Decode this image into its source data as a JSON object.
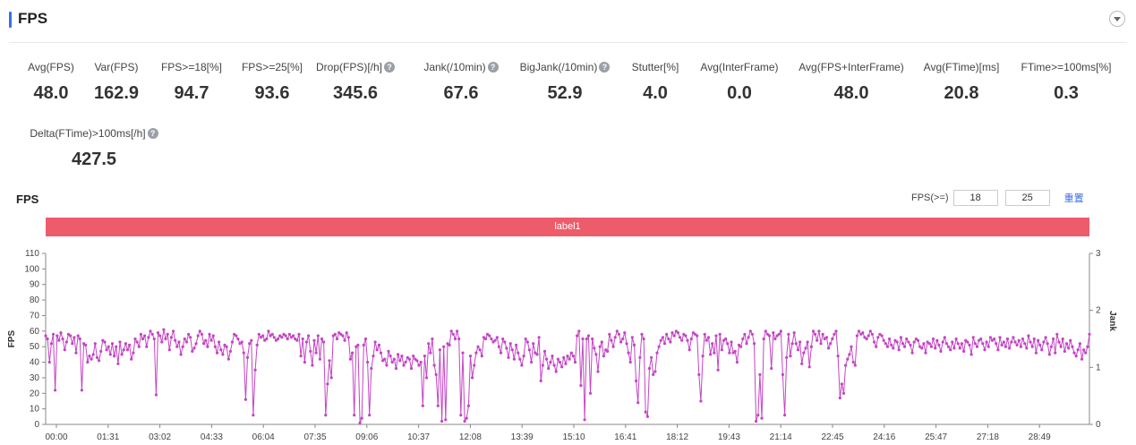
{
  "header": {
    "title": "FPS"
  },
  "metrics": [
    {
      "label": "Avg(FPS)",
      "value": "48.0",
      "help": false
    },
    {
      "label": "Var(FPS)",
      "value": "162.9",
      "help": false
    },
    {
      "label": "FPS>=18[%]",
      "value": "94.7",
      "help": false
    },
    {
      "label": "FPS>=25[%]",
      "value": "93.6",
      "help": false
    },
    {
      "label": "Drop(FPS)[/h]",
      "value": "345.6",
      "help": true
    },
    {
      "label": "Jank(/10min)",
      "value": "67.6",
      "help": true
    },
    {
      "label": "BigJank(/10min)",
      "value": "52.9",
      "help": true
    },
    {
      "label": "Stutter[%]",
      "value": "4.0",
      "help": false
    },
    {
      "label": "Avg(InterFrame)",
      "value": "0.0",
      "help": false
    },
    {
      "label": "Avg(FPS+InterFrame)",
      "value": "48.0",
      "help": false
    },
    {
      "label": "Avg(FTime)[ms]",
      "value": "20.8",
      "help": false
    },
    {
      "label": "FTime>=100ms[%]",
      "value": "0.3",
      "help": false
    },
    {
      "label": "Delta(FTime)>100ms[/h]",
      "value": "427.5",
      "help": true
    }
  ],
  "help_glyph": "?",
  "chart_section": {
    "title": "FPS",
    "fps_filter_label": "FPS(>=)",
    "fps_threshold_1": "18",
    "fps_threshold_2": "25",
    "reset_label": "重置",
    "band_label": "label1",
    "band_color": "#ee5b6a"
  },
  "chart_data": {
    "type": "line",
    "ylabel": "FPS",
    "y2label": "Jank",
    "ylim": [
      0,
      110
    ],
    "y2lim": [
      0,
      3
    ],
    "yticks": [
      0,
      10,
      20,
      30,
      40,
      50,
      60,
      70,
      80,
      90,
      100,
      110
    ],
    "y2ticks": [
      0,
      1,
      2,
      3
    ],
    "xticks": [
      "00:00",
      "01:31",
      "03:02",
      "04:33",
      "06:04",
      "07:35",
      "09:06",
      "10:37",
      "12:08",
      "13:39",
      "15:10",
      "16:41",
      "18:12",
      "19:43",
      "21:14",
      "22:45",
      "24:16",
      "25:47",
      "27:18",
      "28:49"
    ],
    "duration_min": 30.5,
    "series_color": "#c445c4",
    "series": [
      {
        "values": [
          57,
          55,
          40,
          52,
          58,
          22,
          57,
          54,
          59,
          55,
          48,
          53,
          58,
          57,
          52,
          56,
          46,
          57,
          55,
          22,
          52,
          51,
          40,
          44,
          42,
          45,
          52,
          43,
          41,
          47,
          54,
          53,
          48,
          50,
          45,
          52,
          44,
          50,
          39,
          53,
          45,
          48,
          52,
          48,
          51,
          42,
          46,
          55,
          53,
          50,
          58,
          55,
          57,
          50,
          56,
          60,
          58,
          55,
          19,
          59,
          57,
          53,
          61,
          55,
          58,
          48,
          56,
          60,
          54,
          50,
          53,
          45,
          50,
          55,
          53,
          58,
          56,
          47,
          49,
          52,
          57,
          60,
          58,
          52,
          54,
          50,
          58,
          54,
          57,
          50,
          46,
          53,
          48,
          45,
          51,
          50,
          42,
          47,
          53,
          58,
          57,
          55,
          52,
          53,
          46,
          16,
          43,
          52,
          54,
          6,
          35,
          51,
          58,
          56,
          57,
          54,
          55,
          60,
          57,
          58,
          56,
          54,
          55,
          57,
          56,
          58,
          57,
          55,
          58,
          56,
          57,
          55,
          54,
          58,
          44,
          55,
          40,
          53,
          57,
          47,
          38,
          54,
          46,
          57,
          42,
          55,
          53,
          6,
          26,
          41,
          30,
          57,
          58,
          55,
          59,
          58,
          57,
          54,
          59,
          56,
          42,
          46,
          6,
          50,
          51,
          1,
          4,
          51,
          55,
          40,
          6,
          36,
          44,
          53,
          48,
          51,
          46,
          41,
          42,
          38,
          47,
          44,
          40,
          42,
          36,
          45,
          41,
          44,
          38,
          40,
          43,
          42,
          36,
          44,
          42,
          41,
          38,
          40,
          12,
          44,
          30,
          52,
          46,
          55,
          38,
          32,
          12,
          48,
          2,
          50,
          3,
          52,
          51,
          60,
          58,
          55,
          60,
          55,
          6,
          46,
          2,
          4,
          12,
          44,
          30,
          38,
          46,
          50,
          48,
          44,
          56,
          55,
          58,
          57,
          55,
          53,
          54,
          56,
          50,
          46,
          55,
          53,
          49,
          43,
          52,
          48,
          42,
          51,
          46,
          42,
          38,
          44,
          55,
          53,
          48,
          40,
          52,
          46,
          45,
          56,
          28,
          38,
          47,
          42,
          36,
          40,
          44,
          38,
          34,
          42,
          40,
          37,
          43,
          39,
          44,
          42,
          46,
          44,
          40,
          57,
          60,
          25,
          55,
          3,
          55,
          57,
          20,
          55,
          49,
          45,
          34,
          50,
          53,
          44,
          48,
          47,
          58,
          54,
          50,
          56,
          60,
          58,
          53,
          55,
          59,
          52,
          46,
          40,
          56,
          51,
          28,
          14,
          43,
          58,
          55,
          8,
          5,
          36,
          43,
          32,
          34,
          46,
          50,
          54,
          56,
          52,
          58,
          55,
          53,
          59,
          57,
          60,
          59,
          56,
          54,
          58,
          57,
          54,
          48,
          55,
          59,
          58,
          57,
          32,
          15,
          44,
          58,
          54,
          56,
          45,
          52,
          46,
          57,
          35,
          58,
          48,
          54,
          55,
          52,
          46,
          53,
          46,
          47,
          40,
          51,
          50,
          55,
          58,
          52,
          56,
          60,
          58,
          52,
          2,
          6,
          32,
          4,
          55,
          60,
          58,
          57,
          36,
          59,
          55,
          57,
          58,
          60,
          32,
          6,
          43,
          58,
          44,
          52,
          59,
          52,
          48,
          53,
          39,
          46,
          49,
          53,
          37,
          50,
          60,
          58,
          54,
          60,
          52,
          58,
          55,
          56,
          49,
          52,
          55,
          58,
          60,
          44,
          17,
          26,
          20,
          38,
          42,
          45,
          50,
          40,
          38,
          57,
          60,
          58,
          59,
          56,
          55,
          57,
          60,
          58,
          53,
          50,
          56,
          58,
          57,
          54,
          52,
          50,
          55,
          51,
          49,
          54,
          53,
          48,
          56,
          52,
          50,
          55,
          53,
          51,
          46,
          53,
          55,
          54,
          50,
          49,
          52,
          46,
          53,
          52,
          50,
          55,
          49,
          54,
          51,
          47,
          53,
          56,
          52,
          50,
          48,
          53,
          49,
          55,
          52,
          49,
          52,
          47,
          54,
          53,
          51,
          45,
          56,
          52,
          50,
          54,
          55,
          52,
          48,
          53,
          50,
          56,
          54,
          55,
          52,
          48,
          56,
          51,
          53,
          50,
          55,
          49,
          53,
          56,
          53,
          51,
          54,
          50,
          55,
          52,
          49,
          57,
          53,
          50,
          55,
          46,
          54,
          51,
          48,
          53,
          56,
          52,
          45,
          50,
          55,
          46,
          58,
          53,
          50,
          55,
          47,
          52,
          49,
          54,
          50,
          46,
          44,
          48,
          52,
          42,
          48,
          46,
          50,
          58
        ]
      }
    ]
  }
}
